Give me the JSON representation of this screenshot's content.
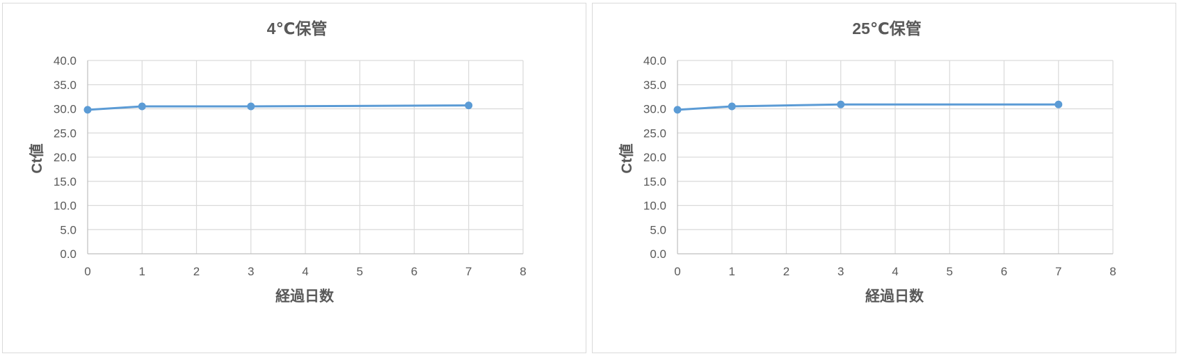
{
  "chart_data": [
    {
      "type": "scatter",
      "title": "4℃保管",
      "xlabel": "経過日数",
      "ylabel": "Ct値",
      "xlim": [
        0,
        8
      ],
      "ylim": [
        0,
        40
      ],
      "x_ticks": [
        "0",
        "1",
        "2",
        "3",
        "4",
        "5",
        "6",
        "7",
        "8"
      ],
      "y_ticks": [
        "0.0",
        "5.0",
        "10.0",
        "15.0",
        "20.0",
        "25.0",
        "30.0",
        "35.0",
        "40.0"
      ],
      "grid": true,
      "legend": "none",
      "series": [
        {
          "x": [
            0,
            1,
            3,
            7
          ],
          "y": [
            29.8,
            30.5,
            30.5,
            30.7
          ],
          "color": "#5b9bd5"
        }
      ]
    },
    {
      "type": "scatter",
      "title": "25℃保管",
      "xlabel": "経過日数",
      "ylabel": "Ct値",
      "xlim": [
        0,
        8
      ],
      "ylim": [
        0,
        40
      ],
      "x_ticks": [
        "0",
        "1",
        "2",
        "3",
        "4",
        "5",
        "6",
        "7",
        "8"
      ],
      "y_ticks": [
        "0.0",
        "5.0",
        "10.0",
        "15.0",
        "20.0",
        "25.0",
        "30.0",
        "35.0",
        "40.0"
      ],
      "grid": true,
      "legend": "none",
      "series": [
        {
          "x": [
            0,
            1,
            3,
            7
          ],
          "y": [
            29.8,
            30.5,
            30.9,
            30.9
          ],
          "color": "#5b9bd5"
        }
      ]
    }
  ]
}
